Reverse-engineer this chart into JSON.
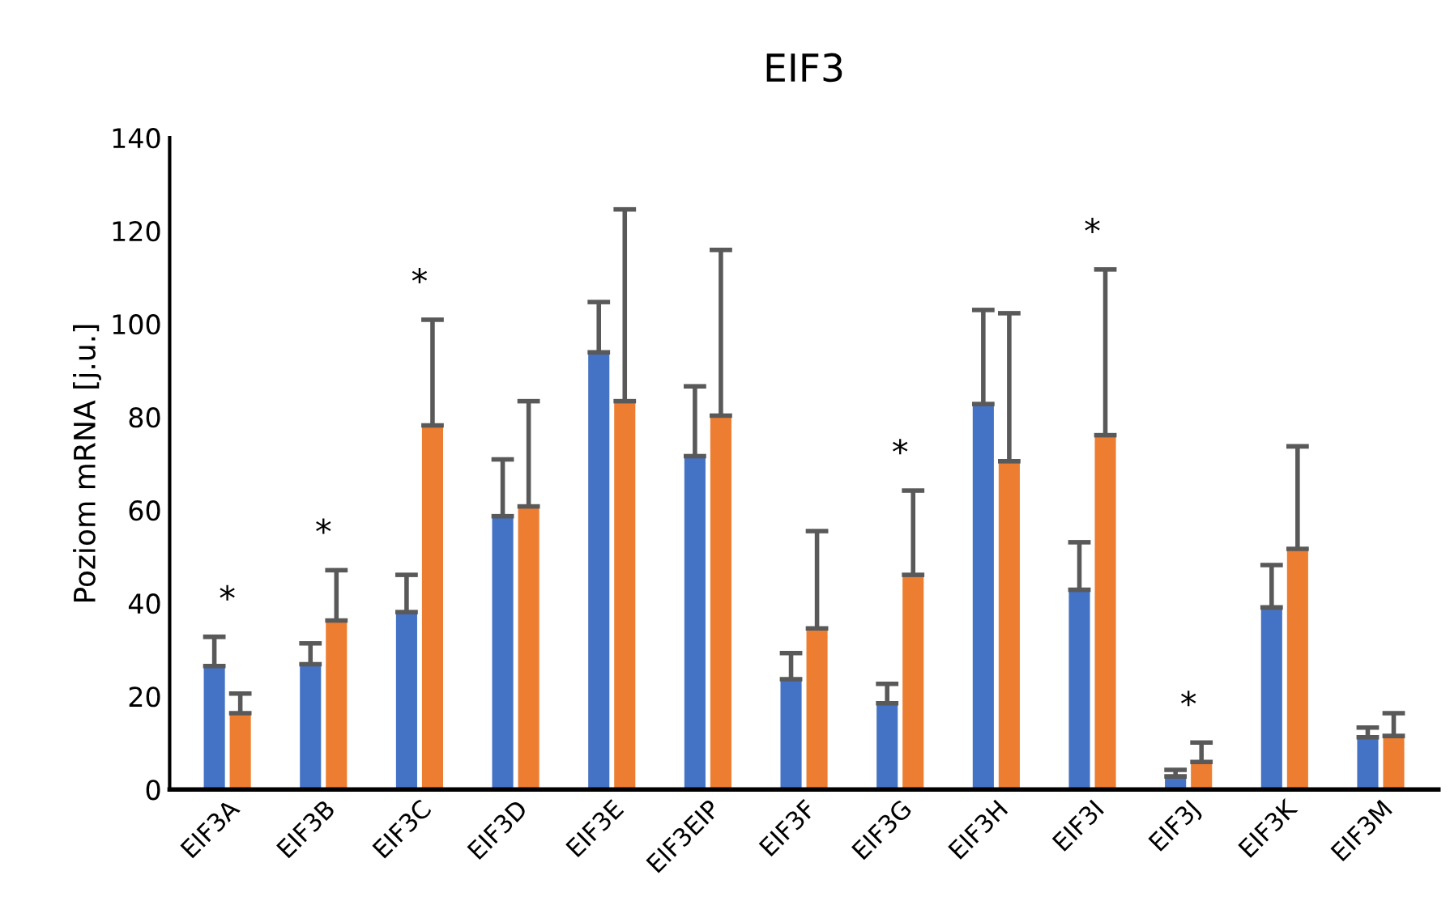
{
  "chart_data": {
    "type": "bar",
    "title": "EIF3",
    "ylabel": "Poziom mRNA [j.u.]",
    "categories": [
      "EIF3A",
      "EIF3B",
      "EIF3C",
      "EIF3D",
      "EIF3E",
      "EIF3EIP",
      "EIF3F",
      "EIF3G",
      "EIF3H",
      "EIF3I",
      "EIF3J",
      "EIF3K",
      "EIF3M"
    ],
    "series": [
      {
        "color": "#4472c4",
        "values": [
          26.5,
          26.9,
          38.1,
          58.7,
          93.9,
          71.6,
          23.7,
          18.5,
          82.8,
          42.9,
          2.8,
          39.1,
          11.2
        ],
        "errors": [
          [
            26.5,
            32.8
          ],
          [
            26.9,
            31.4
          ],
          [
            38.1,
            46.1
          ],
          [
            58.7,
            70.9
          ],
          [
            93.9,
            104.7
          ],
          [
            71.6,
            86.6
          ],
          [
            23.7,
            29.3
          ],
          [
            18.5,
            22.7
          ],
          [
            82.8,
            103.0
          ],
          [
            42.9,
            53.1
          ],
          [
            2.8,
            4.2
          ],
          [
            39.1,
            48.2
          ],
          [
            11.2,
            13.3
          ]
        ]
      },
      {
        "color": "#ed7d31",
        "values": [
          16.4,
          36.3,
          78.2,
          60.8,
          83.4,
          80.3,
          34.6,
          46.1,
          70.5,
          76.1,
          5.9,
          51.7,
          11.5
        ],
        "errors": [
          [
            16.4,
            20.6
          ],
          [
            36.3,
            47.1
          ],
          [
            78.2,
            100.9
          ],
          [
            60.8,
            83.4
          ],
          [
            83.4,
            124.6
          ],
          [
            80.3,
            115.9
          ],
          [
            34.6,
            55.5
          ],
          [
            46.1,
            64.2
          ],
          [
            70.5,
            102.3
          ],
          [
            76.1,
            111.7
          ],
          [
            5.9,
            10.1
          ],
          [
            51.7,
            73.7
          ],
          [
            11.5,
            16.4
          ]
        ]
      }
    ],
    "ylim": [
      0,
      140
    ],
    "yticks": [
      0,
      20,
      40,
      60,
      80,
      100,
      120,
      140
    ],
    "grid": false,
    "legend": false,
    "annotations": [
      {
        "text": "*",
        "x": "EIF3A",
        "y": 32.8
      },
      {
        "text": "*",
        "x": "EIF3B",
        "y": 47.1
      },
      {
        "text": "*",
        "x": "EIF3C",
        "y": 100.9
      },
      {
        "text": "*",
        "x": "EIF3G",
        "y": 64.2
      },
      {
        "text": "*",
        "x": "EIF3I",
        "y": 111.7
      },
      {
        "text": "*",
        "x": "EIF3J",
        "y": 10.1
      }
    ]
  }
}
